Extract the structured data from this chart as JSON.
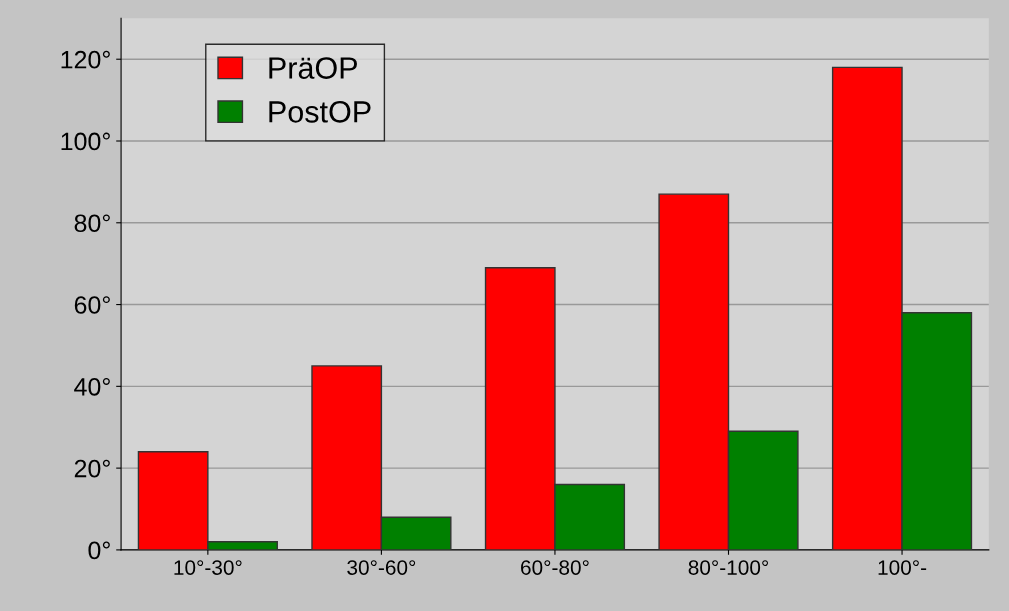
{
  "chart_data": {
    "type": "bar",
    "categories": [
      "10°-30°",
      "30°-60°",
      "60°-80°",
      "80°-100°",
      "100°-"
    ],
    "series": [
      {
        "name": "PräOP",
        "color": "#ff0000",
        "values": [
          24,
          45,
          69,
          87,
          118
        ]
      },
      {
        "name": "PostOP",
        "color": "#008000",
        "values": [
          2,
          8,
          16,
          29,
          58
        ]
      }
    ],
    "ylim": [
      0,
      130
    ],
    "yticks": [
      {
        "value": 0,
        "label": "0°"
      },
      {
        "value": 20,
        "label": "20°"
      },
      {
        "value": 40,
        "label": "40°"
      },
      {
        "value": 60,
        "label": "60°"
      },
      {
        "value": 80,
        "label": "80°"
      },
      {
        "value": 100,
        "label": "100°"
      },
      {
        "value": 120,
        "label": "120°"
      }
    ],
    "grid": "y",
    "legend": "top left"
  }
}
